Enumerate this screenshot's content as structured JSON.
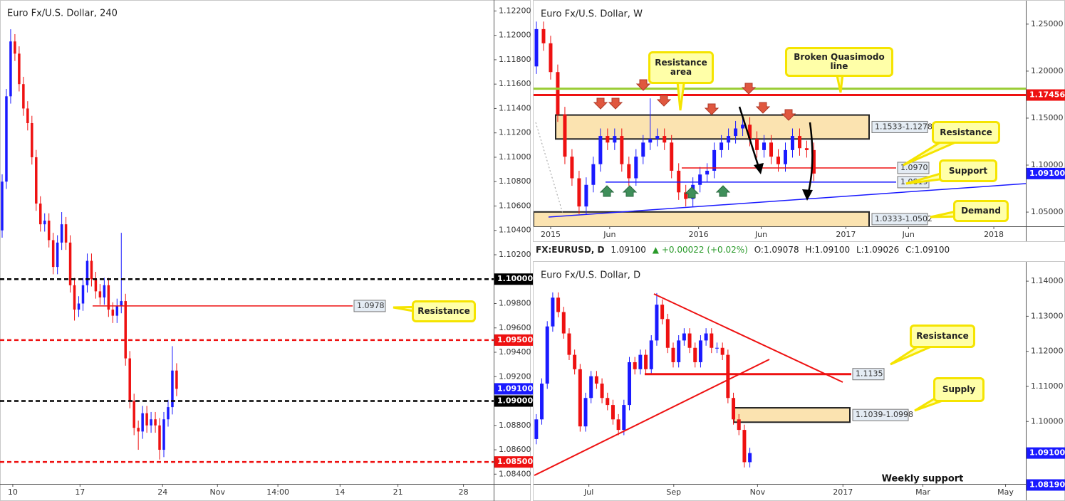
{
  "chart_data": [
    {
      "type": "candlestick",
      "title": "Euro Fx/U.S. Dollar, 240",
      "up_color": "#1a1aff",
      "down_color": "#ee1111",
      "ylim": [
        1.0832,
        1.1229
      ],
      "yticks": [
        {
          "value": 1.084,
          "label": "1.08400"
        },
        {
          "value": 1.086,
          "label": "1.08600"
        },
        {
          "value": 1.088,
          "label": "1.08800"
        },
        {
          "value": 1.092,
          "label": "1.09200"
        },
        {
          "value": 1.094,
          "label": "1.09400"
        },
        {
          "value": 1.096,
          "label": "1.09600"
        },
        {
          "value": 1.098,
          "label": "1.09800"
        },
        {
          "value": 1.102,
          "label": "1.10200"
        },
        {
          "value": 1.104,
          "label": "1.10400"
        },
        {
          "value": 1.106,
          "label": "1.10600"
        },
        {
          "value": 1.108,
          "label": "1.10800"
        },
        {
          "value": 1.11,
          "label": "1.11000"
        },
        {
          "value": 1.112,
          "label": "1.11200"
        },
        {
          "value": 1.114,
          "label": "1.11400"
        },
        {
          "value": 1.116,
          "label": "1.11600"
        },
        {
          "value": 1.118,
          "label": "1.11800"
        },
        {
          "value": 1.12,
          "label": "1.12000"
        },
        {
          "value": 1.122,
          "label": "1.12200"
        }
      ],
      "xlim": [
        -0.5,
        115.5
      ],
      "xticks": [
        {
          "value": 2.5,
          "label": "10"
        },
        {
          "value": 18.3,
          "label": "17"
        },
        {
          "value": 37.7,
          "label": "24"
        },
        {
          "value": 50.6,
          "label": "Nov"
        },
        {
          "value": 64.8,
          "label": "14:00"
        },
        {
          "value": 79.4,
          "label": "14"
        },
        {
          "value": 93.0,
          "label": "21"
        },
        {
          "value": 108.4,
          "label": "28"
        }
      ],
      "open": [
        1.104,
        1.108,
        1.115,
        1.1195,
        1.1185,
        1.116,
        1.114,
        1.1128,
        1.11,
        1.1062,
        1.1045,
        1.1048,
        1.1032,
        1.101,
        1.103,
        1.1045,
        1.103,
        1.0995,
        1.0975,
        1.098,
        1.0995,
        1.1015,
        1.1,
        1.099,
        1.0985,
        1.0995,
        1.0975,
        1.097,
        1.0978,
        1.0982,
        1.0935,
        1.09,
        1.0878,
        1.0875,
        1.089,
        1.088,
        1.0885,
        1.088,
        1.086,
        1.0885,
        1.0895,
        1.0925
      ],
      "high": [
        1.1086,
        1.1156,
        1.1205,
        1.1201,
        1.1191,
        1.1166,
        1.1146,
        1.1134,
        1.1106,
        1.1068,
        1.1054,
        1.1054,
        1.1038,
        1.1036,
        1.1055,
        1.1051,
        1.1036,
        1.1001,
        1.0986,
        1.1001,
        1.1021,
        1.1021,
        1.1006,
        1.0996,
        1.1001,
        1.1001,
        1.0981,
        1.0984,
        1.1038,
        1.0988,
        1.0941,
        1.0906,
        1.0884,
        1.0896,
        1.0896,
        1.0891,
        1.0891,
        1.0886,
        1.0891,
        1.0901,
        1.0945,
        1.0931
      ],
      "low": [
        1.1034,
        1.1074,
        1.1144,
        1.1179,
        1.1154,
        1.1134,
        1.1122,
        1.1094,
        1.1056,
        1.1039,
        1.1039,
        1.1026,
        1.1004,
        1.1004,
        1.1024,
        1.1024,
        1.0989,
        1.0966,
        1.0969,
        1.0974,
        1.0989,
        1.0994,
        1.0984,
        1.0979,
        1.0979,
        1.0969,
        1.0964,
        1.0964,
        1.0972,
        1.0929,
        1.0894,
        1.0872,
        1.086,
        1.0869,
        1.0874,
        1.0874,
        1.0874,
        1.0852,
        1.0854,
        1.0879,
        1.0889,
        1.0904
      ],
      "close": [
        1.108,
        1.115,
        1.1195,
        1.1185,
        1.116,
        1.114,
        1.1128,
        1.11,
        1.1062,
        1.1045,
        1.1048,
        1.1032,
        1.101,
        1.103,
        1.1045,
        1.103,
        1.0995,
        1.0975,
        1.098,
        1.0995,
        1.1015,
        1.1,
        1.099,
        1.0985,
        1.0995,
        1.0975,
        1.097,
        1.0978,
        1.0982,
        1.0935,
        1.09,
        1.0878,
        1.0875,
        1.089,
        1.088,
        1.0885,
        1.088,
        1.086,
        1.0885,
        1.0895,
        1.0925,
        1.091
      ],
      "levels": [
        {
          "value": 1.1,
          "label": "1.10000",
          "color": "#000000",
          "style": "dashed",
          "label_at": "axis"
        },
        {
          "value": 1.095,
          "label": "1.09500",
          "color": "#ee1111",
          "style": "dashed",
          "label_at": "axis"
        },
        {
          "value": 1.09,
          "label": "1.09000",
          "color": "#000000",
          "style": "dashed",
          "label_at": "axis"
        },
        {
          "value": 1.085,
          "label": "1.08500",
          "color": "#ee1111",
          "style": "dashed",
          "label_at": "axis"
        },
        {
          "value": 1.0978,
          "label": "1.0978",
          "color": "#ee1111",
          "style": "solid",
          "label_at": "line"
        }
      ],
      "zones": [],
      "last_price": {
        "value": 1.091,
        "label": "1.09100",
        "color": "#1a1aff"
      },
      "callouts": [
        "Resistance"
      ],
      "notes": []
    },
    {
      "type": "candlestick",
      "title": "Euro Fx/U.S. Dollar, W",
      "up_color": "#1a1aff",
      "down_color": "#ee1111",
      "ylim": [
        1.0349,
        1.2749
      ],
      "yticks": [
        {
          "value": 1.05,
          "label": "1.05000"
        },
        {
          "value": 1.1,
          "label": "1.10000"
        },
        {
          "value": 1.15,
          "label": "1.15000"
        },
        {
          "value": 1.2,
          "label": "1.20000"
        },
        {
          "value": 1.25,
          "label": "1.25000"
        }
      ],
      "xlim": [
        -0.4,
        68.8
      ],
      "xticks": [
        {
          "value": 2.0,
          "label": "2015"
        },
        {
          "value": 10.3,
          "label": "Jun"
        },
        {
          "value": 22.8,
          "label": "2016"
        },
        {
          "value": 31.6,
          "label": "Jun"
        },
        {
          "value": 43.5,
          "label": "2017"
        },
        {
          "value": 52.3,
          "label": "Jun"
        },
        {
          "value": 64.3,
          "label": "2018"
        }
      ],
      "open": [
        1.205,
        1.2447,
        1.2296,
        1.199,
        1.154,
        1.109,
        1.086,
        1.056,
        1.079,
        1.101,
        1.131,
        1.124,
        1.131,
        1.101,
        1.086,
        1.109,
        1.124,
        1.128,
        1.131,
        1.124,
        1.094,
        1.071,
        1.064,
        1.079,
        1.09,
        1.094,
        1.116,
        1.124,
        1.131,
        1.139,
        1.143,
        1.128,
        1.116,
        1.124,
        1.109,
        1.101,
        1.116,
        1.131,
        1.118,
        1.116
      ],
      "high": [
        1.2527,
        1.2527,
        1.2376,
        1.207,
        1.162,
        1.117,
        1.094,
        1.087,
        1.109,
        1.139,
        1.139,
        1.139,
        1.139,
        1.109,
        1.117,
        1.132,
        1.171,
        1.139,
        1.139,
        1.132,
        1.102,
        1.079,
        1.087,
        1.098,
        1.102,
        1.124,
        1.132,
        1.139,
        1.147,
        1.151,
        1.151,
        1.136,
        1.132,
        1.132,
        1.117,
        1.124,
        1.139,
        1.139,
        1.126,
        1.124
      ],
      "low": [
        1.197,
        1.2216,
        1.191,
        1.146,
        1.101,
        1.078,
        1.048,
        1.048,
        1.071,
        1.093,
        1.116,
        1.116,
        1.093,
        1.078,
        1.078,
        1.101,
        1.116,
        1.12,
        1.116,
        1.086,
        1.063,
        1.056,
        1.056,
        1.071,
        1.082,
        1.086,
        1.108,
        1.116,
        1.123,
        1.131,
        1.12,
        1.108,
        1.108,
        1.101,
        1.093,
        1.093,
        1.108,
        1.11,
        1.108,
        1.083
      ],
      "close": [
        1.2447,
        1.2296,
        1.199,
        1.154,
        1.109,
        1.086,
        1.056,
        1.079,
        1.101,
        1.131,
        1.124,
        1.131,
        1.101,
        1.086,
        1.109,
        1.124,
        1.128,
        1.131,
        1.124,
        1.094,
        1.071,
        1.064,
        1.079,
        1.09,
        1.094,
        1.116,
        1.124,
        1.131,
        1.139,
        1.143,
        1.128,
        1.116,
        1.124,
        1.109,
        1.101,
        1.116,
        1.131,
        1.118,
        1.116,
        1.091
      ],
      "levels": [
        {
          "value": 1.17456,
          "label": "1.17456",
          "color": "#ee1111",
          "style": "thick",
          "label_at": "axis"
        },
        {
          "value": 1.1813,
          "color": "#99cc33",
          "style": "thick"
        },
        {
          "value": 1.097,
          "label": "1.0970",
          "color": "#ee1111",
          "style": "solid",
          "label_at": "line"
        },
        {
          "value": 1.0819,
          "label": "1.0819",
          "color": "#1a1aff",
          "style": "solid",
          "label_at": "line"
        }
      ],
      "zones": [
        {
          "high": 1.1533,
          "low": 1.1278,
          "label": "1.1533-1.1278",
          "color": "#fbe3b0"
        },
        {
          "high": 1.0502,
          "low": 1.0333,
          "label": "1.0333-1.0502",
          "color": "#fbe3b0"
        }
      ],
      "last_price": {
        "value": 1.091,
        "label": "1.09100",
        "color": "#1a1aff"
      },
      "callouts": [
        "Resistance area",
        "Broken Quasimodo line",
        "Resistance",
        "Support",
        "Demand"
      ],
      "notes": []
    },
    {
      "type": "candlestick",
      "title": "Euro Fx/U.S. Dollar, D",
      "up_color": "#1a1aff",
      "down_color": "#ee1111",
      "ylim": [
        1.0822,
        1.1455
      ],
      "yticks": [
        {
          "value": 1.1,
          "label": "1.10000"
        },
        {
          "value": 1.11,
          "label": "1.11000"
        },
        {
          "value": 1.12,
          "label": "1.12000"
        },
        {
          "value": 1.13,
          "label": "1.13000"
        },
        {
          "value": 1.14,
          "label": "1.14000"
        }
      ],
      "xlim": [
        -0.5,
        89.4
      ],
      "xticks": [
        {
          "value": 9.6,
          "label": "Jul"
        },
        {
          "value": 25.1,
          "label": "Sep"
        },
        {
          "value": 40.4,
          "label": "Nov"
        },
        {
          "value": 56.0,
          "label": "2017"
        },
        {
          "value": 70.6,
          "label": "Mar"
        },
        {
          "value": 85.7,
          "label": "May"
        }
      ],
      "open": [
        1.095,
        1.1006,
        1.1108,
        1.1271,
        1.1353,
        1.1312,
        1.1251,
        1.119,
        1.1149,
        1.0986,
        1.1067,
        1.1129,
        1.1108,
        1.1067,
        1.1047,
        1.1006,
        1.0976,
        1.1047,
        1.1169,
        1.1149,
        1.119,
        1.1149,
        1.1231,
        1.1333,
        1.1292,
        1.121,
        1.1169,
        1.1231,
        1.1251,
        1.121,
        1.1169,
        1.1231,
        1.1251,
        1.121,
        1.121,
        1.119,
        1.1067,
        1.1006,
        1.0976,
        1.0884
      ],
      "high": [
        1.1021,
        1.1123,
        1.1286,
        1.1368,
        1.1368,
        1.1327,
        1.1266,
        1.1205,
        1.1164,
        1.1082,
        1.1144,
        1.1144,
        1.1123,
        1.1082,
        1.1062,
        1.1021,
        1.1062,
        1.1184,
        1.1184,
        1.1205,
        1.1205,
        1.1246,
        1.1366,
        1.1348,
        1.1307,
        1.1225,
        1.1246,
        1.1266,
        1.1266,
        1.1225,
        1.1246,
        1.1266,
        1.1266,
        1.1225,
        1.1225,
        1.1205,
        1.1082,
        1.1021,
        1.0991,
        1.0925
      ],
      "low": [
        1.0935,
        1.0991,
        1.1093,
        1.1256,
        1.1297,
        1.1236,
        1.1175,
        1.1134,
        1.0971,
        1.0971,
        1.1052,
        1.1093,
        1.1052,
        1.1032,
        1.0991,
        1.0961,
        1.0961,
        1.1032,
        1.1134,
        1.1134,
        1.1134,
        1.1134,
        1.1216,
        1.1277,
        1.1195,
        1.1154,
        1.1154,
        1.1216,
        1.1195,
        1.1154,
        1.1154,
        1.1216,
        1.1195,
        1.1195,
        1.1175,
        1.1052,
        1.0991,
        1.0961,
        1.0869,
        1.0869
      ],
      "close": [
        1.1006,
        1.1108,
        1.1271,
        1.1353,
        1.1312,
        1.1251,
        1.119,
        1.1149,
        1.0986,
        1.1067,
        1.1129,
        1.1108,
        1.1067,
        1.1047,
        1.1006,
        1.0976,
        1.1047,
        1.1169,
        1.1149,
        1.119,
        1.1149,
        1.1231,
        1.1333,
        1.1292,
        1.121,
        1.1169,
        1.1231,
        1.1251,
        1.121,
        1.1169,
        1.1231,
        1.1251,
        1.121,
        1.121,
        1.119,
        1.1067,
        1.1006,
        1.0976,
        1.0884,
        1.091
      ],
      "levels": [
        {
          "value": 1.1135,
          "label": "1.1135",
          "color": "#ee1111",
          "style": "thick",
          "label_at": "line"
        },
        {
          "value": 1.0819,
          "label": "1.08190",
          "color": "#1a1aff",
          "style": "solid",
          "label_at": "axis"
        }
      ],
      "zones": [
        {
          "high": 1.1039,
          "low": 1.0998,
          "label": "1.1039-1.0998",
          "color": "#fbe3b0"
        }
      ],
      "last_price": {
        "value": 1.091,
        "label": "1.09100",
        "color": "#1a1aff"
      },
      "callouts": [
        "Resistance",
        "Supply"
      ],
      "notes": [
        "Weekly support"
      ]
    }
  ],
  "info_bar": {
    "symbol": "FX:EURUSD, D",
    "price": "1.09100",
    "arrow": "▲",
    "change": "+0.00022 (+0.02%)",
    "open": "O:1.09078",
    "high": "H:1.09100",
    "low": "L:1.09026",
    "close": "C:1.09100"
  }
}
